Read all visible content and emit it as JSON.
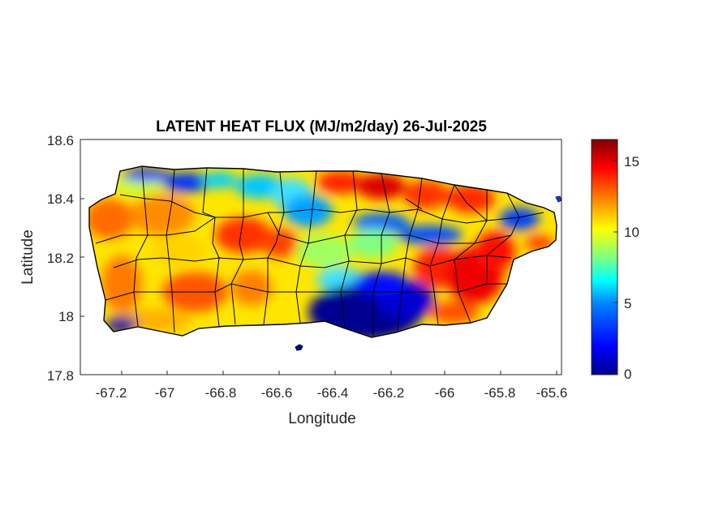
{
  "title": "LATENT HEAT FLUX (MJ/m2/day) 26-Jul-2025",
  "xlabel": "Longitude",
  "ylabel": "Latitude",
  "xlim": [
    -67.3,
    -65.58
  ],
  "ylim": [
    17.8,
    18.6
  ],
  "xticks": [
    -67.2,
    -67,
    -66.8,
    -66.6,
    -66.4,
    -66.2,
    -66,
    -65.8,
    -65.6
  ],
  "xtick_labels": [
    "-67.2",
    "-67",
    "-66.8",
    "-66.6",
    "-66.4",
    "-66.2",
    "-66",
    "-65.8",
    "-65.6"
  ],
  "yticks": [
    18.6,
    18.4,
    18.2,
    18,
    17.8
  ],
  "ytick_labels": [
    "18.6",
    "18.4",
    "18.2",
    "18",
    "17.8"
  ],
  "colorbar": {
    "colormap": "jet",
    "range": [
      0,
      16.5
    ],
    "ticks": [
      0,
      5,
      10,
      15
    ],
    "tick_labels": [
      "0",
      "5",
      "10",
      "15"
    ],
    "colors": [
      "#00008f",
      "#0000ff",
      "#0080ff",
      "#00ffff",
      "#80ff80",
      "#ffff00",
      "#ff8000",
      "#ff0000",
      "#800000"
    ]
  },
  "chart_data": {
    "type": "heatmap",
    "title": "LATENT HEAT FLUX (MJ/m2/day) 26-Jul-2025",
    "xlabel": "Longitude",
    "ylabel": "Latitude",
    "xlim": [
      -67.3,
      -65.58
    ],
    "ylim": [
      17.8,
      18.6
    ],
    "value_range": [
      0,
      16.5
    ],
    "grid": false,
    "region": "Puerto Rico (with municipality boundaries)",
    "sample_values": [
      {
        "lon": -67.25,
        "lat": 18.35,
        "value": 12
      },
      {
        "lon": -67.2,
        "lat": 18.2,
        "value": 10
      },
      {
        "lon": -67.2,
        "lat": 17.97,
        "value": 1
      },
      {
        "lon": -67.0,
        "lat": 18.47,
        "value": 1.5
      },
      {
        "lon": -67.0,
        "lat": 18.3,
        "value": 11
      },
      {
        "lon": -66.8,
        "lat": 18.28,
        "value": 14
      },
      {
        "lon": -66.8,
        "lat": 18.05,
        "value": 13
      },
      {
        "lon": -66.6,
        "lat": 18.45,
        "value": 5
      },
      {
        "lon": -66.6,
        "lat": 18.2,
        "value": 9
      },
      {
        "lon": -66.4,
        "lat": 18.47,
        "value": 14
      },
      {
        "lon": -66.4,
        "lat": 18.3,
        "value": 5
      },
      {
        "lon": -66.3,
        "lat": 18.0,
        "value": 1
      },
      {
        "lon": -66.2,
        "lat": 18.45,
        "value": 15
      },
      {
        "lon": -66.0,
        "lat": 18.4,
        "value": 14
      },
      {
        "lon": -66.0,
        "lat": 18.05,
        "value": 14
      },
      {
        "lon": -65.85,
        "lat": 18.2,
        "value": 15
      },
      {
        "lon": -65.7,
        "lat": 18.35,
        "value": 4
      },
      {
        "lon": -65.65,
        "lat": 18.28,
        "value": 12
      }
    ]
  }
}
